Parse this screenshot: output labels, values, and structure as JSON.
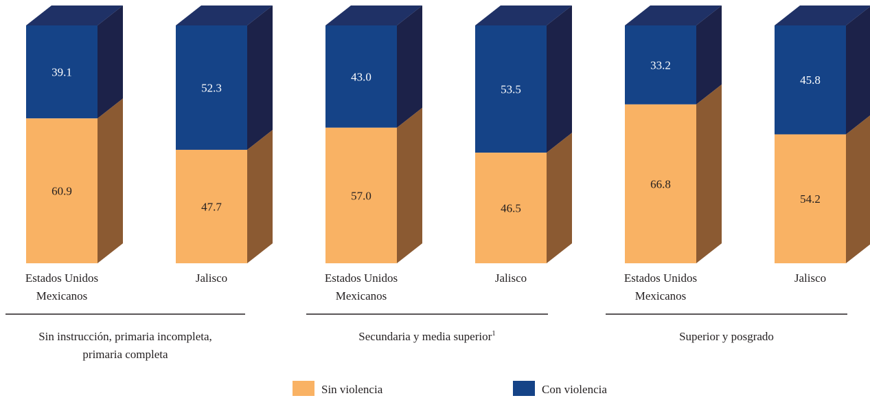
{
  "chart_data": {
    "type": "bar",
    "stacked": true,
    "orientation": "vertical",
    "ylim": [
      0,
      100
    ],
    "grid": false,
    "legend_position": "bottom",
    "groups": [
      {
        "label_lines": [
          "Sin instrucción, primaria incompleta,",
          "primaria completa"
        ],
        "superscript": "",
        "bars": [
          {
            "category_lines": [
              "Estados Unidos",
              "Mexicanos"
            ],
            "sin_violencia": 60.9,
            "con_violencia": 39.1
          },
          {
            "category_lines": [
              "Jalisco"
            ],
            "sin_violencia": 47.7,
            "con_violencia": 52.3
          }
        ]
      },
      {
        "label_lines": [
          "Secundaria y media superior"
        ],
        "superscript": "1",
        "bars": [
          {
            "category_lines": [
              "Estados Unidos",
              "Mexicanos"
            ],
            "sin_violencia": 57.0,
            "con_violencia": 43.0
          },
          {
            "category_lines": [
              "Jalisco"
            ],
            "sin_violencia": 46.5,
            "con_violencia": 53.5
          }
        ]
      },
      {
        "label_lines": [
          "Superior y posgrado"
        ],
        "superscript": "",
        "bars": [
          {
            "category_lines": [
              "Estados Unidos",
              "Mexicanos"
            ],
            "sin_violencia": 66.8,
            "con_violencia": 33.2
          },
          {
            "category_lines": [
              "Jalisco"
            ],
            "sin_violencia": 54.2,
            "con_violencia": 45.8
          }
        ]
      }
    ],
    "series": [
      {
        "key": "sin_violencia",
        "name": "Sin violencia",
        "color": "#f9b264",
        "side_color": "#8b5a32",
        "label_color": "#231f20"
      },
      {
        "key": "con_violencia",
        "name": "Con violencia",
        "color": "#154387",
        "side_color": "#1c2249",
        "top_color": "#1f3166",
        "label_color": "#ffffff"
      }
    ]
  }
}
